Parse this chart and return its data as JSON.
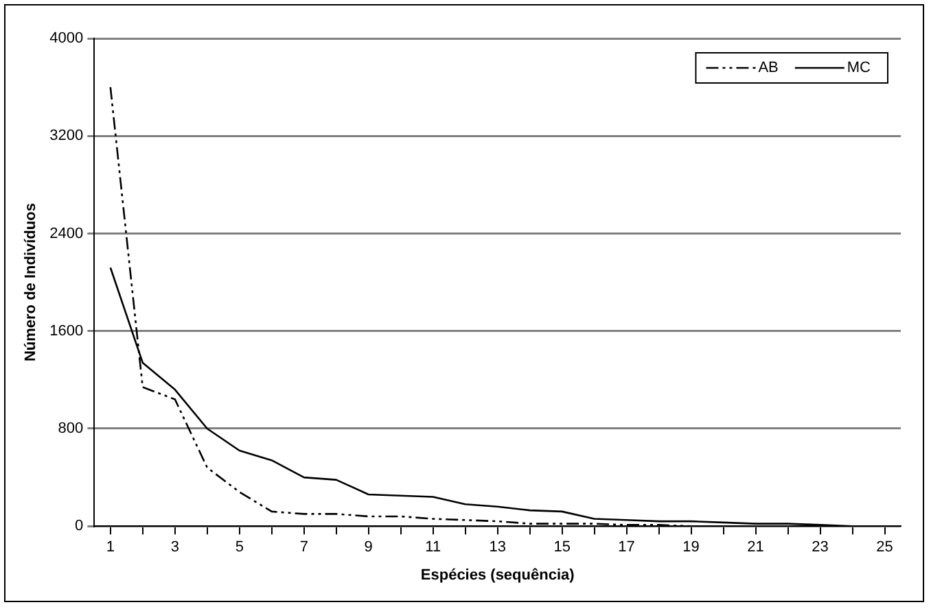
{
  "chart_data": {
    "type": "line",
    "xlabel": "Espécies (sequência)",
    "ylabel": "Número de Indivíduos",
    "x": [
      1,
      2,
      3,
      4,
      5,
      6,
      7,
      8,
      9,
      10,
      11,
      12,
      13,
      14,
      15,
      16,
      17,
      18,
      19,
      20,
      21,
      22,
      23,
      24,
      25
    ],
    "xlim": [
      0.5,
      25.5
    ],
    "xticks": [
      1,
      {
        "value": 2,
        "label": null
      },
      3,
      {
        "value": 4,
        "label": null
      },
      5,
      {
        "value": 6,
        "label": null
      },
      7,
      {
        "value": 8,
        "label": null
      },
      9,
      {
        "value": 10,
        "label": null
      },
      11,
      {
        "value": 12,
        "label": null
      },
      13,
      {
        "value": 14,
        "label": null
      },
      15,
      {
        "value": 16,
        "label": null
      },
      17,
      {
        "value": 18,
        "label": null
      },
      19,
      {
        "value": 20,
        "label": null
      },
      21,
      {
        "value": 22,
        "label": null
      },
      23,
      {
        "value": 24,
        "label": null
      },
      25
    ],
    "series": [
      {
        "name": "AB",
        "color": "#000000",
        "line_style": "dashed",
        "values": [
          3600,
          1140,
          1040,
          480,
          280,
          120,
          100,
          100,
          80,
          80,
          60,
          50,
          40,
          20,
          20,
          20,
          10,
          10,
          0,
          0,
          0,
          0,
          0,
          0,
          0
        ]
      },
      {
        "name": "MC",
        "color": "#000000",
        "line_style": "solid",
        "values": [
          2120,
          1340,
          1120,
          800,
          620,
          540,
          400,
          380,
          260,
          250,
          240,
          180,
          160,
          130,
          120,
          60,
          50,
          40,
          40,
          30,
          20,
          20,
          10,
          0,
          0
        ]
      }
    ],
    "ylim": [
      0,
      4000
    ],
    "yticks": [
      0,
      800,
      1600,
      2400,
      3200,
      4000
    ],
    "grid": "y",
    "legend": "top right",
    "marker": "none"
  }
}
